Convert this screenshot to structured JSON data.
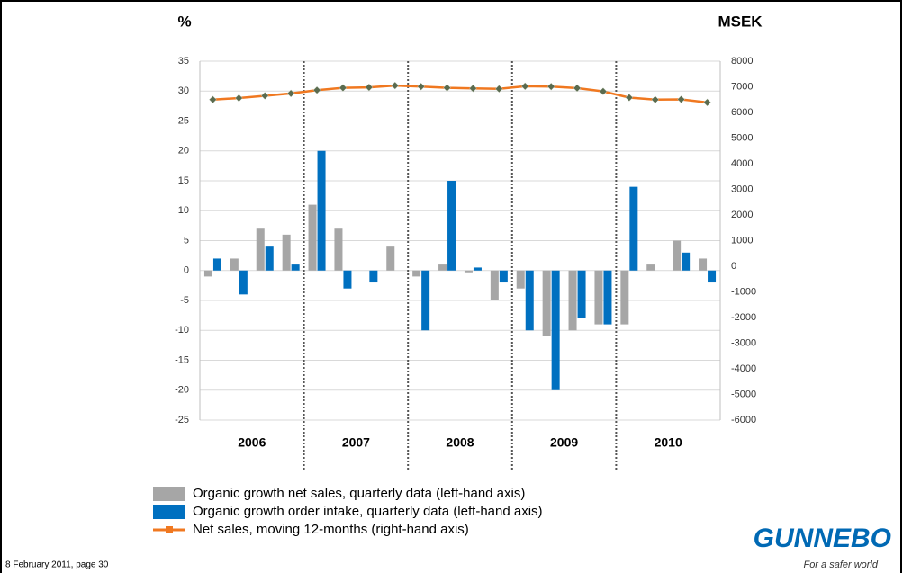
{
  "chart_data": {
    "type": "combo",
    "y_label": "%",
    "y2_label": "MSEK",
    "categories": [
      null,
      null,
      null,
      null,
      null,
      null,
      null,
      null,
      null,
      null,
      null,
      null,
      null,
      null,
      null,
      null,
      null,
      null,
      null,
      null
    ],
    "groups": [
      "2006",
      "2007",
      "2008",
      "2009",
      "2010"
    ],
    "series": [
      {
        "name": "Organic growth net sales, quarterly data (left-hand axis)",
        "type": "bar",
        "color": "#a6a6a6",
        "values": [
          -1,
          2,
          7,
          6,
          11,
          7,
          0,
          4,
          -1,
          1,
          -0.3,
          -5,
          -3,
          -11,
          -10,
          -9,
          -9,
          1,
          5,
          2
        ]
      },
      {
        "name": "Organic growth order intake, quarterly data (left-hand axis)",
        "type": "bar",
        "color": "#0070c0",
        "values": [
          2,
          -4,
          4,
          1,
          20,
          -3,
          -2,
          null,
          -10,
          15,
          0.5,
          -2,
          -10,
          -20,
          -8,
          -9,
          14,
          null,
          3,
          -2
        ]
      },
      {
        "name": "Net sales, moving 12-months (right-hand axis)",
        "type": "line",
        "axis": "y2",
        "color": "#f07820",
        "marker_color": "#5a6b4f",
        "values": [
          6500,
          6560,
          6650,
          6740,
          6870,
          6960,
          6980,
          7050,
          7010,
          6960,
          6940,
          6920,
          7020,
          7010,
          6950,
          6820,
          6580,
          6500,
          6510,
          6390
        ]
      }
    ],
    "ylim": [
      -25,
      35
    ],
    "yticks": [
      -25,
      -20,
      -15,
      -10,
      -5,
      0,
      5,
      10,
      15,
      20,
      25,
      30,
      35
    ],
    "y2lim": [
      -6000,
      8000
    ],
    "y2ticks": [
      -6000,
      -5000,
      -4000,
      -3000,
      -2000,
      -1000,
      0,
      1000,
      2000,
      3000,
      4000,
      5000,
      6000,
      7000,
      8000
    ],
    "grid": true
  },
  "footer": {
    "date": "8 February 2011, page 30",
    "logo": "GUNNEBO",
    "tagline": "For a safer world"
  }
}
